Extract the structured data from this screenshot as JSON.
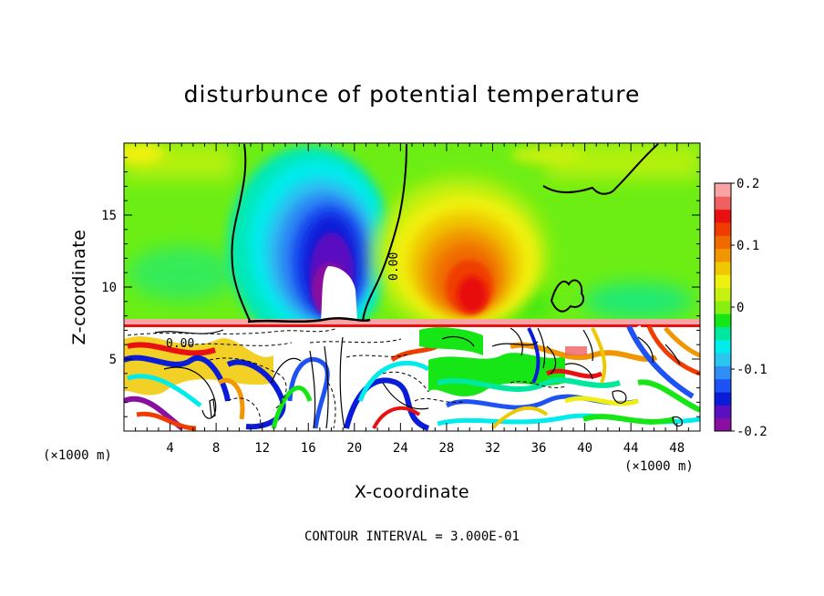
{
  "chart_data": {
    "type": "heatmap",
    "title": "disturbunce of potential temperature",
    "xlabel": "X-coordinate",
    "ylabel": "Z-coordinate",
    "x_unit": "(×1000 m)",
    "x_unit_right": "(×1000 m)",
    "xlim": [
      0,
      50
    ],
    "ylim": [
      0,
      20
    ],
    "x_ticks": [
      4,
      8,
      12,
      16,
      20,
      24,
      28,
      32,
      36,
      40,
      44,
      48
    ],
    "y_ticks": [
      5,
      10,
      15
    ],
    "colorbar": {
      "range": [
        -0.2,
        0.2
      ],
      "tick_values": [
        0.2,
        0.1,
        0,
        -0.1,
        -0.2
      ],
      "tick_labels": [
        "0.2",
        "0.1",
        "0",
        "-0.1",
        "-0.2"
      ],
      "colors": [
        "#8a0ea0",
        "#5a0fc0",
        "#0a1cd8",
        "#1f52f2",
        "#2e8ef2",
        "#2cc5f0",
        "#00ecec",
        "#00e89e",
        "#16e616",
        "#88f010",
        "#c8f010",
        "#f0f010",
        "#f0c800",
        "#f09600",
        "#f06a00",
        "#f03c00",
        "#e81010",
        "#f06060",
        "#f8a4a4"
      ]
    },
    "contour_label": "0.00",
    "contour_label_2": "0.00",
    "note": "CONTOUR INTERVAL = 3.000E-01",
    "features": [
      {
        "name": "cold anomaly aloft",
        "x": 18.5,
        "z": 12,
        "value": -0.2
      },
      {
        "name": "warm anomaly aloft",
        "x": 29.5,
        "z": 11,
        "value": 0.13
      }
    ]
  }
}
